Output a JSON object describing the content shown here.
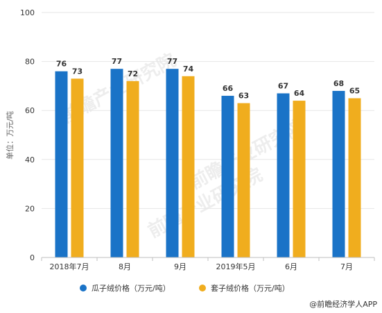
{
  "chart_data": {
    "type": "bar",
    "categories": [
      "2018年7月",
      "8月",
      "9月",
      "2019年5月",
      "6月",
      "7月"
    ],
    "series": [
      {
        "name": "瓜子绒价格（万元/吨）",
        "values": [
          76,
          77,
          77,
          66,
          67,
          68
        ],
        "color": "#1a73c7"
      },
      {
        "name": "套子绒价格（万元/吨）",
        "values": [
          73,
          72,
          74,
          63,
          64,
          65
        ],
        "color": "#f0ad1e"
      }
    ],
    "title": "",
    "xlabel": "",
    "ylabel": "单位：万元/吨",
    "ylim": [
      0,
      100
    ],
    "yticks": [
      0,
      20,
      40,
      60,
      80,
      100
    ],
    "grid": "y",
    "legend": "bottom-center"
  },
  "source": "@前瞻经济学人APP",
  "watermark": "前瞻产业研究院"
}
